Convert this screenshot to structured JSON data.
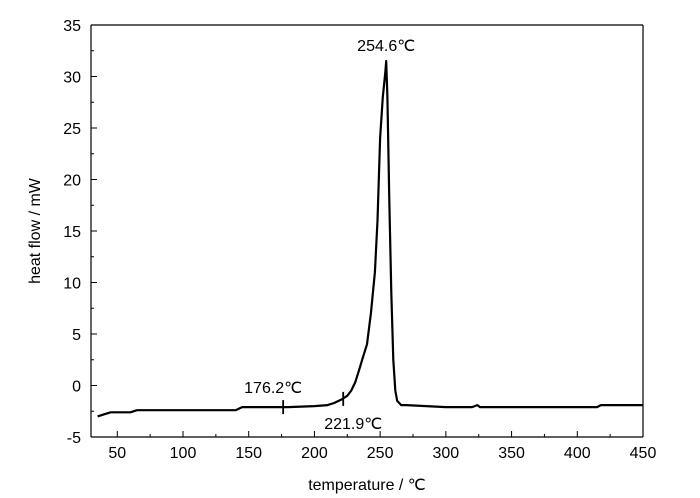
{
  "chart_data": {
    "type": "line",
    "xlabel": "temperature / ℃",
    "ylabel": "heat flow / mW",
    "xlim": [
      30,
      450
    ],
    "ylim": [
      -5,
      35
    ],
    "xticks": [
      50,
      100,
      150,
      200,
      250,
      300,
      350,
      400,
      450
    ],
    "yticks": [
      -5,
      0,
      5,
      10,
      15,
      20,
      25,
      30,
      35
    ],
    "grid": false,
    "series": [
      {
        "x": [
          35,
          40,
          45,
          60,
          65,
          100,
          140,
          145,
          180,
          200,
          210,
          215,
          220,
          225,
          228,
          231,
          234,
          237,
          240,
          243,
          246,
          248,
          250,
          252,
          254,
          254.6,
          255.5,
          257,
          258.5,
          260,
          261.5,
          263,
          266,
          270,
          285,
          300,
          320,
          324,
          326,
          330,
          350,
          400,
          415,
          418,
          430,
          450
        ],
        "y": [
          -3.0,
          -2.8,
          -2.6,
          -2.6,
          -2.4,
          -2.4,
          -2.4,
          -2.1,
          -2.1,
          -2.0,
          -1.9,
          -1.7,
          -1.4,
          -1.0,
          -0.5,
          0.3,
          1.5,
          2.8,
          4.0,
          7.0,
          11.0,
          16.0,
          24.0,
          28.0,
          30.5,
          31.5,
          28.0,
          18.0,
          9.0,
          2.5,
          -0.5,
          -1.5,
          -1.9,
          -1.9,
          -2.0,
          -2.1,
          -2.1,
          -1.9,
          -2.1,
          -2.1,
          -2.1,
          -2.1,
          -2.1,
          -1.9,
          -1.9,
          -1.9
        ]
      }
    ],
    "annotations": [
      {
        "text": "176.2℃",
        "x": 176.2,
        "y": -2.1
      },
      {
        "text": "221.9℃",
        "x": 221.9,
        "y": -1.3
      },
      {
        "text": "254.6℃",
        "x": 254.6,
        "y": 31.5
      }
    ]
  }
}
